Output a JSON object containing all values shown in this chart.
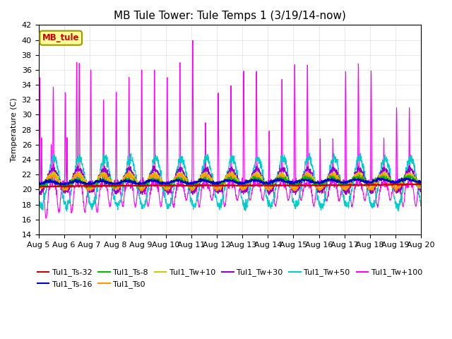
{
  "title": "MB Tule Tower: Tule Temps 1 (3/19/14-now)",
  "ylabel": "Temperature (C)",
  "xlim_days": 15,
  "ylim": [
    14,
    42
  ],
  "yticks": [
    14,
    16,
    18,
    20,
    22,
    24,
    26,
    28,
    30,
    32,
    34,
    36,
    38,
    40,
    42
  ],
  "x_labels": [
    "Aug 5",
    "Aug 6",
    "Aug 7",
    "Aug 8",
    "Aug 9",
    "Aug 10",
    "Aug 11",
    "Aug 12",
    "Aug 13",
    "Aug 14",
    "Aug 15",
    "Aug 16",
    "Aug 17",
    "Aug 18",
    "Aug 19",
    "Aug 20"
  ],
  "series": [
    {
      "label": "Tul1_Ts-32",
      "color": "#cc0000"
    },
    {
      "label": "Tul1_Ts-16",
      "color": "#0000cc"
    },
    {
      "label": "Tul1_Ts-8",
      "color": "#00bb00"
    },
    {
      "label": "Tul1_Ts0",
      "color": "#ff9900"
    },
    {
      "label": "Tul1_Tw+10",
      "color": "#cccc00"
    },
    {
      "label": "Tul1_Tw+30",
      "color": "#9900cc"
    },
    {
      "label": "Tul1_Tw+50",
      "color": "#00cccc"
    },
    {
      "label": "Tul1_Tw+100",
      "color": "#ff00ff"
    }
  ],
  "annotation_box": {
    "text": "MB_tule",
    "facecolor": "#ffff99",
    "edgecolor": "#999900",
    "textcolor": "#cc0000"
  },
  "background_color": "#ffffff",
  "grid_color": "#e0e0e0",
  "title_fontsize": 11,
  "axis_fontsize": 8,
  "legend_fontsize": 8
}
